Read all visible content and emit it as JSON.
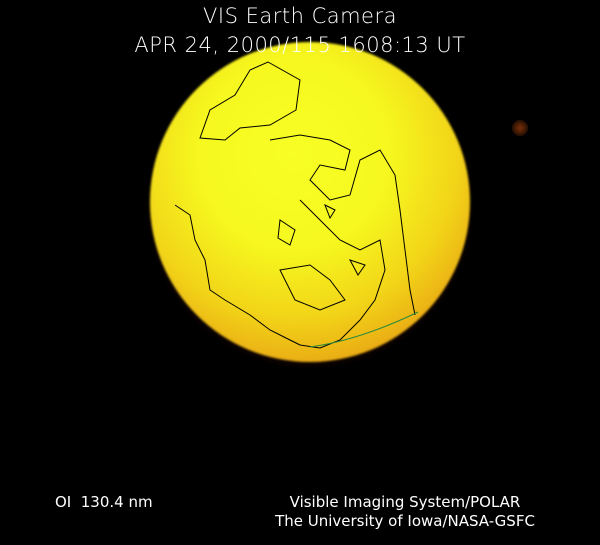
{
  "header": {
    "title": "VIS Earth Camera",
    "timestamp": "APR 24, 2000/115 1608:13 UT"
  },
  "footer": {
    "band": "OI  130.4 nm",
    "credit_line1": "Visible Imaging System/POLAR",
    "credit_line2": "The University of Iowa/NASA-GSFC"
  },
  "colors": {
    "background": "#000000",
    "disc_core": "#f6ff22",
    "disc_edge": "#b65a08",
    "coastline": "#000000",
    "terminator": "#2a8a3a"
  }
}
